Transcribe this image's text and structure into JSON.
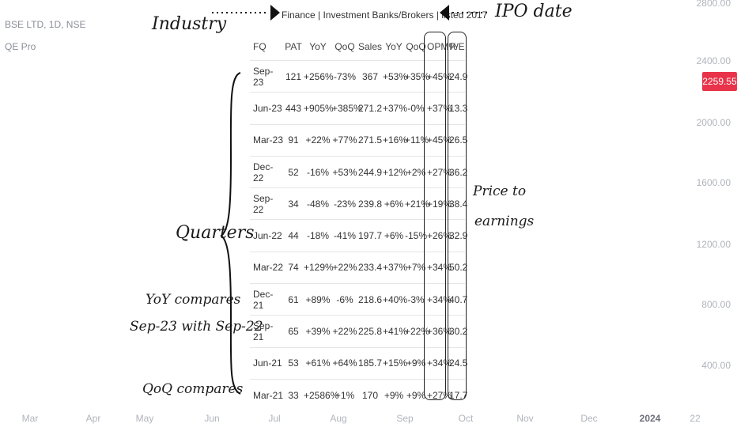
{
  "chart": {
    "symbol": "BSE LTD, 1D, NSE",
    "indicator": "QE Pro",
    "current_price": "2259.55",
    "price_ticks": [
      {
        "label": "2800.00"
      },
      {
        "label": "2400.00"
      },
      {
        "label": "2000.00"
      },
      {
        "label": "1600.00"
      },
      {
        "label": "1200.00"
      },
      {
        "label": "800.00"
      },
      {
        "label": "400.00"
      }
    ],
    "time_ticks": [
      {
        "label": "Mar"
      },
      {
        "label": "Apr"
      },
      {
        "label": "May"
      },
      {
        "label": "Jun"
      },
      {
        "label": "Jul"
      },
      {
        "label": "Aug"
      },
      {
        "label": "Sep"
      },
      {
        "label": "Oct"
      },
      {
        "label": "Nov"
      },
      {
        "label": "Dec"
      },
      {
        "label": "2024",
        "bold": true
      },
      {
        "label": "22"
      }
    ]
  },
  "panel": {
    "header": "Finance | Investment Banks/Brokers | listed 2017",
    "columns": [
      "FQ",
      "PAT",
      "YoY",
      "QoQ",
      "Sales",
      "YoY",
      "QoQ",
      "OPM%",
      "P/E"
    ],
    "rows": [
      {
        "fq": "Sep-23",
        "pat": "121",
        "pat_yoy": "+256%",
        "pat_qoq": "-73%",
        "sales": "367",
        "sales_yoy": "+53%",
        "sales_qoq": "+35%",
        "opm": "+45%",
        "pe": "24.9"
      },
      {
        "fq": "Jun-23",
        "pat": "443",
        "pat_yoy": "+905%",
        "pat_qoq": "+385%",
        "sales": "271.2",
        "sales_yoy": "+37%",
        "sales_qoq": "-0%",
        "opm": "+37%",
        "pe": "13.3"
      },
      {
        "fq": "Mar-23",
        "pat": "91",
        "pat_yoy": "+22%",
        "pat_qoq": "+77%",
        "sales": "271.5",
        "sales_yoy": "+16%",
        "sales_qoq": "+11%",
        "opm": "+45%",
        "pe": "26.5"
      },
      {
        "fq": "Dec-22",
        "pat": "52",
        "pat_yoy": "-16%",
        "pat_qoq": "+53%",
        "sales": "244.9",
        "sales_yoy": "+12%",
        "sales_qoq": "+2%",
        "opm": "+27%",
        "pe": "36.2"
      },
      {
        "fq": "Sep-22",
        "pat": "34",
        "pat_yoy": "-48%",
        "pat_qoq": "-23%",
        "sales": "239.8",
        "sales_yoy": "+6%",
        "sales_qoq": "+21%",
        "opm": "+19%",
        "pe": "38.4"
      },
      {
        "fq": "Jun-22",
        "pat": "44",
        "pat_yoy": "-18%",
        "pat_qoq": "-41%",
        "sales": "197.7",
        "sales_yoy": "+6%",
        "sales_qoq": "-15%",
        "opm": "+26%",
        "pe": "32.9"
      },
      {
        "fq": "Mar-22",
        "pat": "74",
        "pat_yoy": "+129%",
        "pat_qoq": "+22%",
        "sales": "233.4",
        "sales_yoy": "+37%",
        "sales_qoq": "+7%",
        "opm": "+34%",
        "pe": "50.2"
      },
      {
        "fq": "Dec-21",
        "pat": "61",
        "pat_yoy": "+89%",
        "pat_qoq": "-6%",
        "sales": "218.6",
        "sales_yoy": "+40%",
        "sales_qoq": "-3%",
        "opm": "+34%",
        "pe": "40.7"
      },
      {
        "fq": "Sep-21",
        "pat": "65",
        "pat_yoy": "+39%",
        "pat_qoq": "+22%",
        "sales": "225.8",
        "sales_yoy": "+41%",
        "sales_qoq": "+22%",
        "opm": "+36%",
        "pe": "30.2"
      },
      {
        "fq": "Jun-21",
        "pat": "53",
        "pat_yoy": "+61%",
        "pat_qoq": "+64%",
        "sales": "185.7",
        "sales_yoy": "+15%",
        "sales_qoq": "+9%",
        "opm": "+34%",
        "pe": "24.5"
      },
      {
        "fq": "Mar-21",
        "pat": "33",
        "pat_yoy": "+2586%",
        "pat_qoq": "+1%",
        "sales": "170",
        "sales_yoy": "+9%",
        "sales_qoq": "+9%",
        "opm": "+27%",
        "pe": "17.7"
      }
    ]
  },
  "annotations": {
    "industry": "Industry",
    "ipo_date": "IPO date",
    "quarters": "Quarters",
    "yoy_line1": "YoY compares",
    "yoy_line2": "Sep-23 with Sep-22",
    "qoq": "QoQ compares",
    "pe_line1": "Price to",
    "pe_line2": "earnings"
  },
  "colors": {
    "positive": "#4b32d8",
    "negative": "#e85bbd",
    "neutral": "#e2a23a",
    "price_badge": "#e8334a"
  }
}
